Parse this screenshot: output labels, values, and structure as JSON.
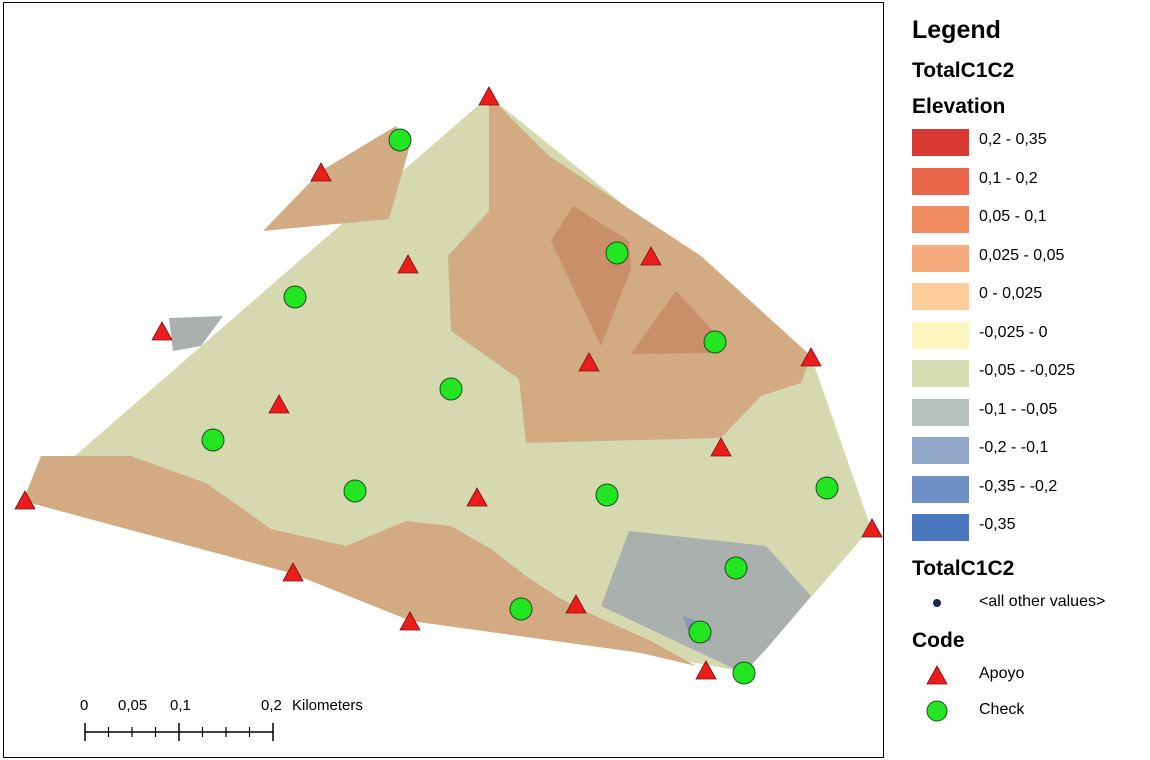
{
  "legend": {
    "title": "Legend",
    "layer_name": "TotalC1C2",
    "field_name": "Elevation",
    "classes": [
      {
        "label": "0,2 - 0,35",
        "color": "#d93a33"
      },
      {
        "label": "0,1 - 0,2",
        "color": "#e8654a"
      },
      {
        "label": "0,05 - 0,1",
        "color": "#f08c5f"
      },
      {
        "label": "0,025 - 0,05",
        "color": "#f5ab7c"
      },
      {
        "label": "0 - 0,025",
        "color": "#fdcc9a"
      },
      {
        "label": "-0,025 - 0",
        "color": "#fbf6bf"
      },
      {
        "label": "-0,05 - -0,025",
        "color": "#d6ddb3"
      },
      {
        "label": "-0,1 - -0,05",
        "color": "#b5c2bf"
      },
      {
        "label": "-0,2 - -0,1",
        "color": "#92a8c8"
      },
      {
        "label": "-0,35 - -0,2",
        "color": "#6e90c6"
      },
      {
        "label": "-0,35",
        "color": "#4a76bd"
      }
    ],
    "points_layer_name": "TotalC1C2",
    "other_values_label": "<all other values>",
    "code_field": "Code",
    "symbols": [
      {
        "label": "Apoyo",
        "color": "#ec1c1c",
        "icon": "red-triangle-icon"
      },
      {
        "label": "Check",
        "color": "#22e622",
        "icon": "green-circle-icon"
      }
    ]
  },
  "map": {
    "base_color": "#d6d9b0",
    "high_zone_color": "#d3ab82",
    "higher_zone_color": "#c98f6b",
    "low_zone_color": "#a9b0ae",
    "lower_zone_color": "#8799ad"
  },
  "scale": {
    "ticks": [
      "0",
      "0,05",
      "0,1",
      "0,2"
    ],
    "unit": "Kilometers"
  }
}
